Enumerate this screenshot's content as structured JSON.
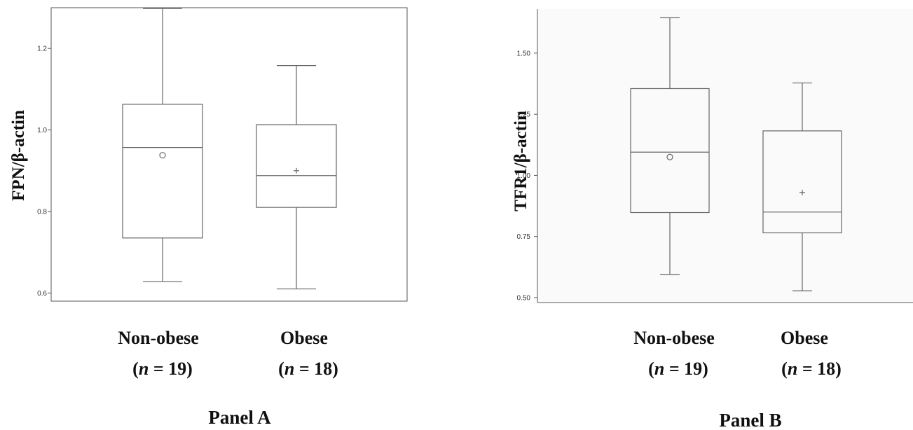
{
  "chart_data": [
    {
      "type": "box",
      "panel_label": "Panel A",
      "ylabel": "FPN/β-actin",
      "ylim": [
        0.58,
        1.3
      ],
      "yticks": [
        0.6,
        0.8,
        1.0,
        1.2
      ],
      "ytick_labels": [
        "0.6",
        "0.8",
        "1.0",
        "1.2"
      ],
      "mean_marker": "circle-then-plus",
      "groups": [
        {
          "category": "Non-obese",
          "n_label": "(n = 19)",
          "n_value": "19",
          "min": 0.628,
          "q1": 0.735,
          "median": 0.957,
          "q3": 1.063,
          "max": 1.298,
          "mean": 0.938,
          "mean_marker": "circle"
        },
        {
          "category": "Obese",
          "n_label": "(n = 18)",
          "n_value": "18",
          "min": 0.61,
          "q1": 0.81,
          "median": 0.888,
          "q3": 1.013,
          "max": 1.158,
          "mean": 0.9,
          "mean_marker": "plus"
        }
      ]
    },
    {
      "type": "box",
      "panel_label": "Panel B",
      "ylabel": "TFR1/β-actin",
      "ylim": [
        0.48,
        1.68
      ],
      "yticks": [
        0.5,
        0.75,
        1.0,
        1.25,
        1.5
      ],
      "ytick_labels": [
        "0.50",
        "0.75",
        "1.00",
        "1.25",
        "1.50"
      ],
      "groups": [
        {
          "category": "Non-obese",
          "n_label": "(n = 19)",
          "n_value": "19",
          "min": 0.595,
          "q1": 0.848,
          "median": 1.095,
          "q3": 1.355,
          "max": 1.645,
          "mean": 1.075,
          "mean_marker": "circle"
        },
        {
          "category": "Obese",
          "n_label": "(n = 18)",
          "n_value": "18",
          "min": 0.528,
          "q1": 0.765,
          "median": 0.85,
          "q3": 1.182,
          "max": 1.378,
          "mean": 0.93,
          "mean_marker": "plus"
        }
      ]
    }
  ]
}
